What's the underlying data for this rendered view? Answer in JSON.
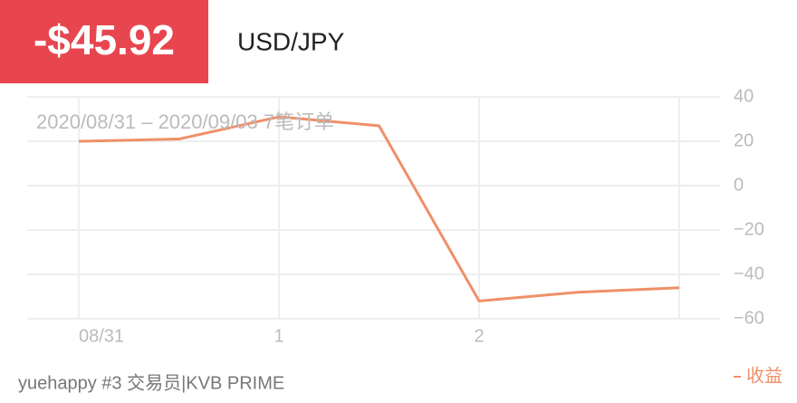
{
  "header": {
    "amount": "-$45.92",
    "symbol": "USD/JPY"
  },
  "chart_data": {
    "type": "line",
    "subtitle": "2020/08/31 – 2020/09/03 7笔订单",
    "categories": [
      "08/31",
      null,
      "1",
      null,
      "2",
      null,
      null
    ],
    "series": [
      {
        "name": "收益",
        "color": "#ef9068",
        "values": [
          20,
          21,
          31,
          27,
          -52,
          -48,
          -46
        ]
      }
    ],
    "ylim": [
      -60,
      40
    ],
    "yticks": [
      {
        "value": -60,
        "label": "−60"
      },
      {
        "value": -40,
        "label": "−40"
      },
      {
        "value": -20,
        "label": "−20"
      },
      0,
      20,
      40
    ],
    "grid": true,
    "legend": "bottom-right"
  },
  "footer": "yuehappy #3 交易员|KVB PRIME"
}
